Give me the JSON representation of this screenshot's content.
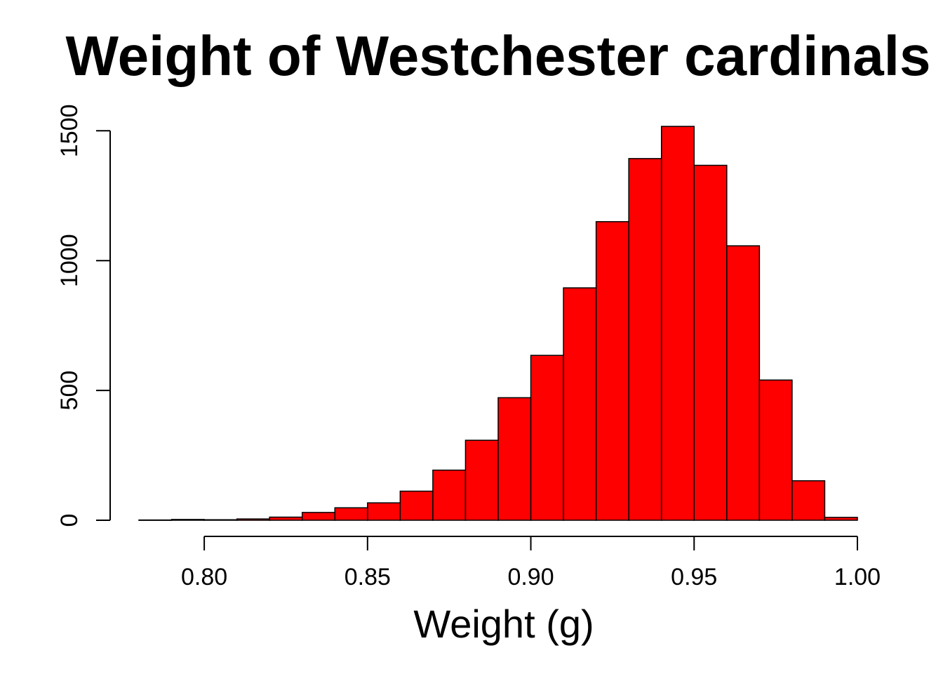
{
  "chart_data": {
    "type": "bar",
    "title": "Weight of Westchester cardinals",
    "xlabel": "Weight (g)",
    "ylabel": "",
    "bin_edges": [
      0.78,
      0.79,
      0.8,
      0.81,
      0.82,
      0.83,
      0.84,
      0.85,
      0.86,
      0.87,
      0.88,
      0.89,
      0.9,
      0.91,
      0.92,
      0.93,
      0.94,
      0.95,
      0.96,
      0.97,
      0.98,
      0.99,
      1.0
    ],
    "values": [
      1,
      3,
      2,
      5,
      12,
      30,
      48,
      67,
      112,
      193,
      308,
      472,
      635,
      895,
      1150,
      1393,
      1517,
      1367,
      1057,
      540,
      152,
      11
    ],
    "xlim": [
      0.78,
      1.0
    ],
    "ylim": [
      0,
      1517
    ],
    "x_ticks": [
      "0.80",
      "0.85",
      "0.90",
      "0.95",
      "1.00"
    ],
    "x_tick_values": [
      0.8,
      0.85,
      0.9,
      0.95,
      1.0
    ],
    "y_ticks": [
      "0",
      "500",
      "1000",
      "1500"
    ],
    "y_tick_values": [
      0,
      500,
      1000,
      1500
    ],
    "grid": false,
    "legend": "none",
    "colors": {
      "bar_fill": "#ff0000",
      "bar_stroke": "#000000",
      "axis": "#000000",
      "background": "#ffffff"
    }
  }
}
